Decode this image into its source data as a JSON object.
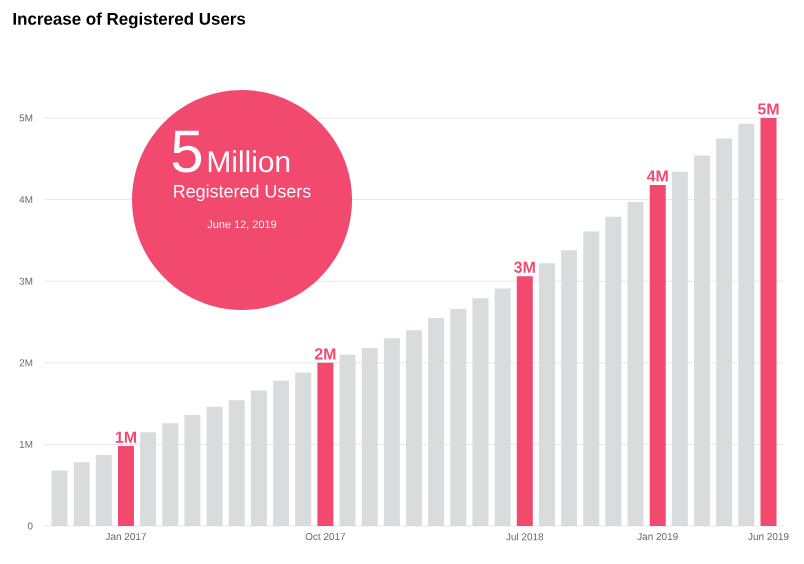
{
  "chart_data": {
    "type": "bar",
    "title": "Increase of Registered Users",
    "categories": [
      null,
      null,
      null,
      "Jan 2017",
      null,
      null,
      null,
      null,
      null,
      null,
      null,
      null,
      "Oct 2017",
      null,
      null,
      null,
      null,
      null,
      null,
      null,
      null,
      "Jul 2018",
      null,
      null,
      null,
      null,
      null,
      "Jan 2019",
      null,
      null,
      null,
      null,
      "Jun 2019"
    ],
    "values": [
      0.68,
      0.78,
      0.87,
      0.98,
      1.15,
      1.26,
      1.36,
      1.46,
      1.54,
      1.66,
      1.78,
      1.88,
      2.0,
      2.1,
      2.18,
      2.3,
      2.4,
      2.55,
      2.66,
      2.79,
      2.91,
      3.06,
      3.22,
      3.38,
      3.61,
      3.79,
      3.97,
      4.18,
      4.34,
      4.54,
      4.75,
      4.93,
      5.0
    ],
    "colors": [
      "#d9dcdc",
      "#d9dcdc",
      "#d9dcdc",
      "#f2496f",
      "#d9dcdc",
      "#d9dcdc",
      "#d9dcdc",
      "#d9dcdc",
      "#d9dcdc",
      "#d9dcdc",
      "#d9dcdc",
      "#d9dcdc",
      "#f2496f",
      "#d9dcdc",
      "#d9dcdc",
      "#d9dcdc",
      "#d9dcdc",
      "#d9dcdc",
      "#d9dcdc",
      "#d9dcdc",
      "#d9dcdc",
      "#f2496f",
      "#d9dcdc",
      "#d9dcdc",
      "#d9dcdc",
      "#d9dcdc",
      "#d9dcdc",
      "#f2496f",
      "#d9dcdc",
      "#d9dcdc",
      "#d9dcdc",
      "#d9dcdc",
      "#f2496f"
    ],
    "value_labels": [
      null,
      null,
      null,
      "1M",
      null,
      null,
      null,
      null,
      null,
      null,
      null,
      null,
      "2M",
      null,
      null,
      null,
      null,
      null,
      null,
      null,
      null,
      "3M",
      null,
      null,
      null,
      null,
      null,
      "4M",
      null,
      null,
      null,
      null,
      "5M"
    ],
    "ylim": [
      0,
      5
    ],
    "yticks": [
      {
        "value": 0,
        "label": "0"
      },
      {
        "value": 1,
        "label": "1M"
      },
      {
        "value": 2,
        "label": "2M"
      },
      {
        "value": 3,
        "label": "3M"
      },
      {
        "value": 4,
        "label": "4M"
      },
      {
        "value": 5,
        "label": "5M"
      }
    ],
    "grid": "y",
    "annotations": [
      "5",
      "Million",
      "Registered Users",
      "June 12, 2019"
    ]
  }
}
